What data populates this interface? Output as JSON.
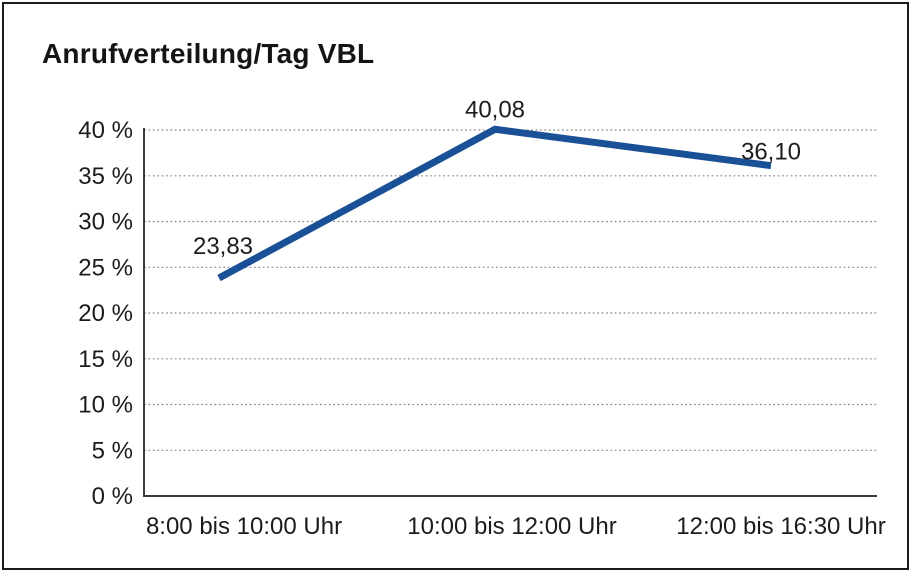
{
  "page": {
    "background_color": "#ffffff",
    "frame_border_color": "#1a1a1a"
  },
  "chart_data": {
    "type": "line",
    "title": "Anrufverteilung/Tag VBL",
    "categories": [
      "8:00 bis 10:00 Uhr",
      "10:00 bis 12:00 Uhr",
      "12:00 bis 16:30 Uhr"
    ],
    "values": [
      23.83,
      40.08,
      36.1
    ],
    "value_labels": [
      "23,83",
      "40,08",
      "36,10"
    ],
    "xlabel": "",
    "ylabel": "",
    "ylim": [
      0,
      40
    ],
    "ytick_step": 5,
    "ytick_labels": [
      "0 %",
      "5 %",
      "10 %",
      "15 %",
      "20 %",
      "25 %",
      "30 %",
      "35 %",
      "40 %"
    ],
    "grid": "horizontal-dotted",
    "legend": "none",
    "line_color": "#1A5096",
    "axis_color": "#3a3a3a",
    "grid_color": "#8a8a8a",
    "text_color": "#1c1c1c"
  }
}
